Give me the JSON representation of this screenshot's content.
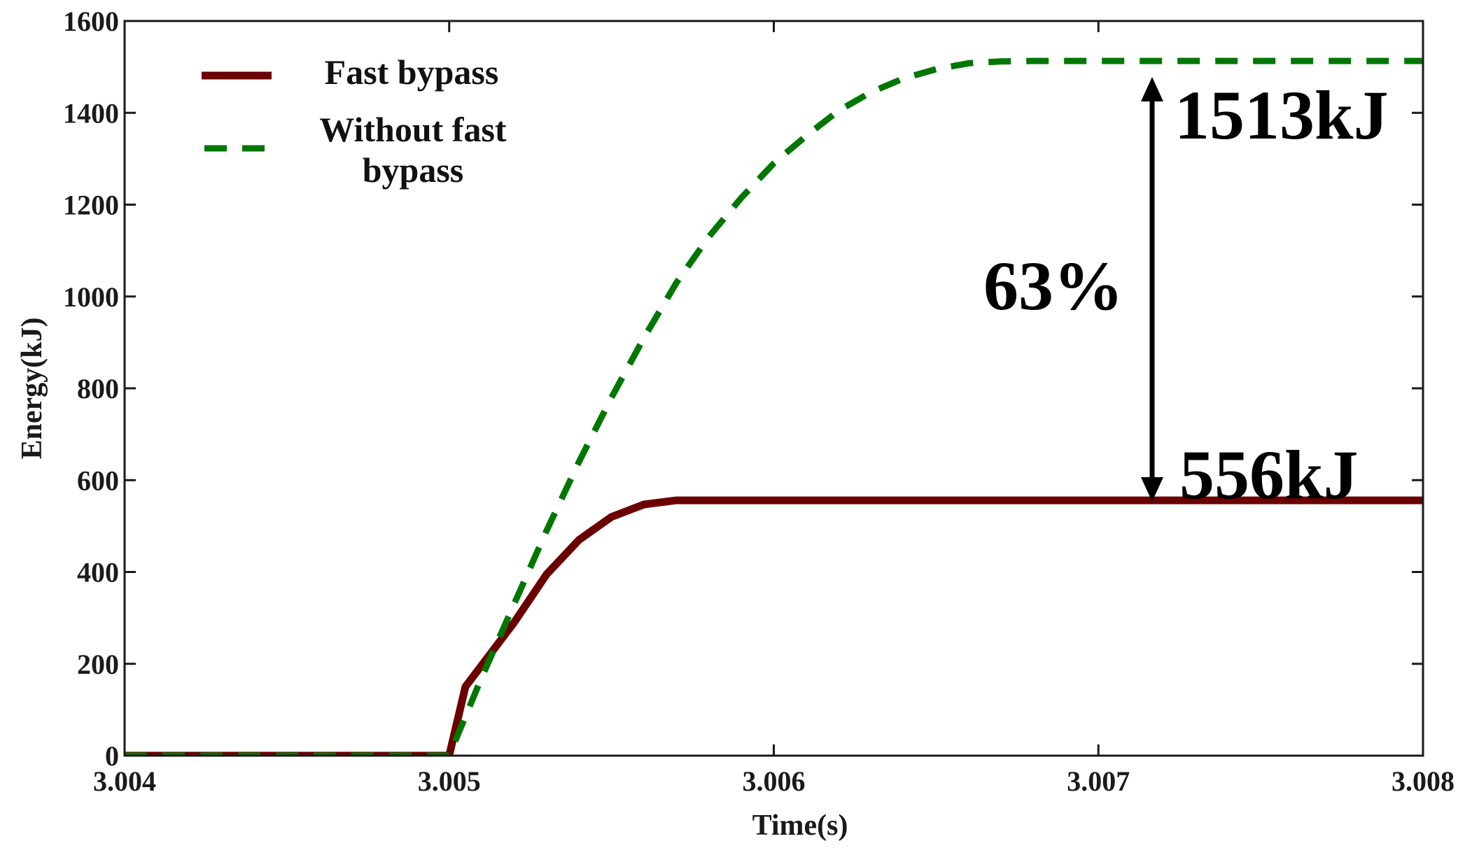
{
  "chart_data": {
    "type": "line",
    "xlabel": "Time(s)",
    "ylabel": "Energy(kJ)",
    "xlim": [
      3.004,
      3.008
    ],
    "ylim": [
      0,
      1600
    ],
    "xticks": [
      3.004,
      3.005,
      3.006,
      3.007,
      3.008
    ],
    "xtick_labels": [
      "3.004",
      "3.005",
      "3.006",
      "3.007",
      "3.008"
    ],
    "yticks": [
      0,
      200,
      400,
      600,
      800,
      1000,
      1200,
      1400,
      1600
    ],
    "ytick_labels": [
      "0",
      "200",
      "400",
      "600",
      "800",
      "1000",
      "1200",
      "1400",
      "1600"
    ],
    "legend_position": "top-left",
    "series": [
      {
        "name": "Fast bypass",
        "color": "#6b0000",
        "style": "solid",
        "x": [
          3.004,
          3.005,
          3.00505,
          3.0052,
          3.0053,
          3.0054,
          3.0055,
          3.0056,
          3.0057,
          3.006,
          3.007,
          3.008
        ],
        "y": [
          0,
          0,
          150,
          290,
          395,
          470,
          520,
          547,
          556,
          556,
          556,
          556
        ]
      },
      {
        "name": "Without fast bypass",
        "color": "#007700",
        "style": "dashed",
        "x": [
          3.004,
          3.005,
          3.0051,
          3.0052,
          3.0053,
          3.0054,
          3.0055,
          3.0056,
          3.0057,
          3.0058,
          3.0059,
          3.006,
          3.0061,
          3.0062,
          3.0063,
          3.0064,
          3.0065,
          3.0066,
          3.0067,
          3.0068,
          3.007,
          3.008
        ],
        "y": [
          0,
          0,
          170,
          330,
          490,
          640,
          780,
          910,
          1030,
          1130,
          1215,
          1290,
          1350,
          1405,
          1445,
          1475,
          1495,
          1508,
          1512,
          1513,
          1513,
          1513
        ]
      }
    ],
    "annotations": [
      {
        "text": "1513kJ",
        "value": 1513
      },
      {
        "text": "556kJ",
        "value": 556
      },
      {
        "text": "63%",
        "arrow_from": 556,
        "arrow_to": 1513,
        "arrow_x": 3.00717
      }
    ]
  }
}
